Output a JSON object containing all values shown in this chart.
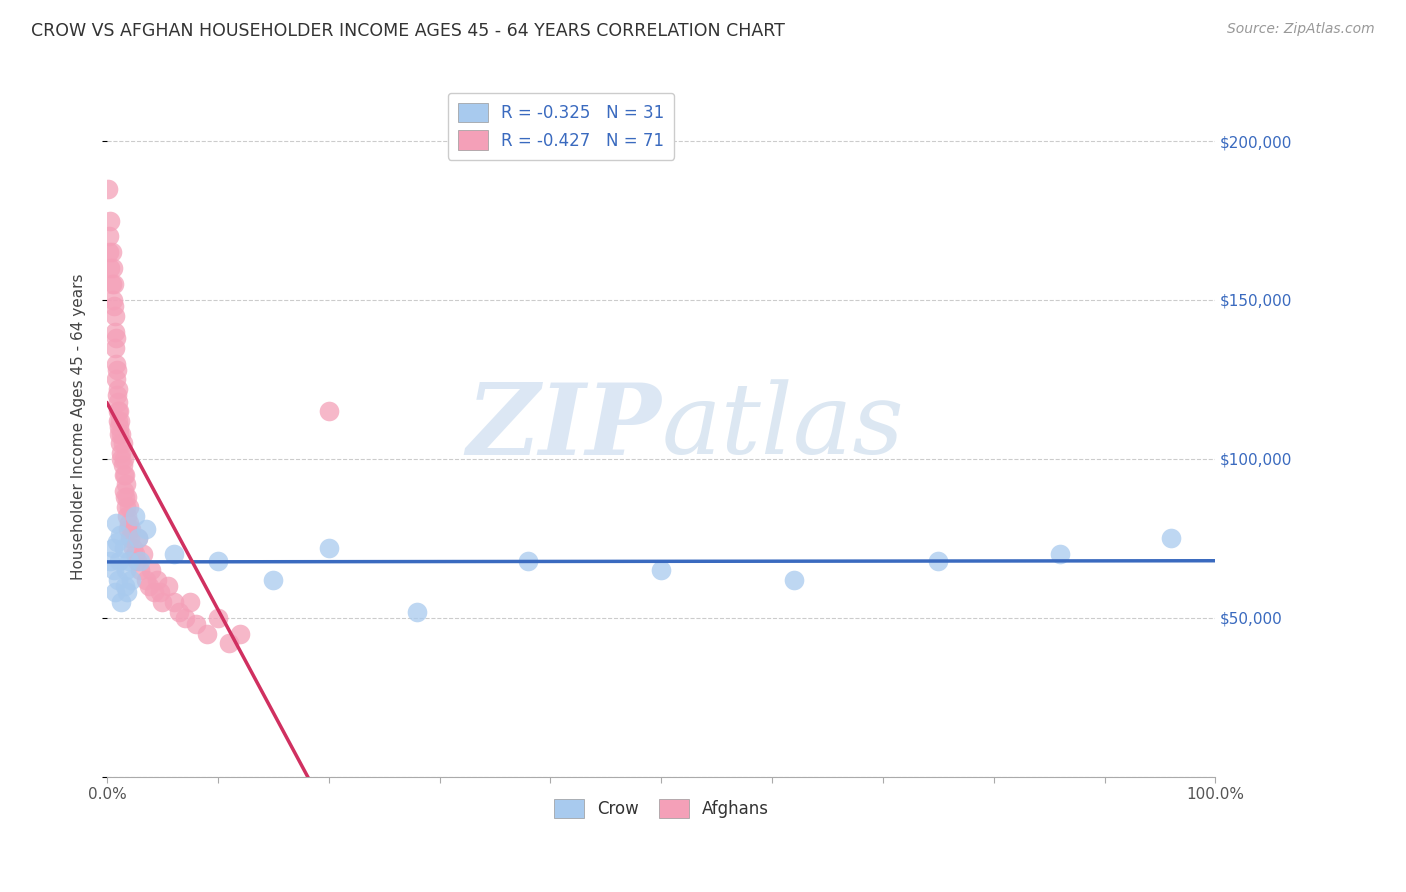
{
  "title": "CROW VS AFGHAN HOUSEHOLDER INCOME AGES 45 - 64 YEARS CORRELATION CHART",
  "source": "Source: ZipAtlas.com",
  "ylabel": "Householder Income Ages 45 - 64 years",
  "crow_R": -0.325,
  "crow_N": 31,
  "afghan_R": -0.427,
  "afghan_N": 71,
  "watermark_zip": "ZIP",
  "watermark_atlas": "atlas",
  "crow_color": "#a8caee",
  "afghan_color": "#f4a0b8",
  "crow_line_color": "#3a6abf",
  "afghan_line_color": "#d03060",
  "crow_x": [
    0.003,
    0.005,
    0.006,
    0.007,
    0.008,
    0.009,
    0.01,
    0.011,
    0.012,
    0.013,
    0.015,
    0.016,
    0.017,
    0.018,
    0.02,
    0.022,
    0.025,
    0.028,
    0.03,
    0.035,
    0.06,
    0.1,
    0.15,
    0.2,
    0.28,
    0.38,
    0.5,
    0.62,
    0.75,
    0.86,
    0.96
  ],
  "crow_y": [
    68000,
    72000,
    65000,
    58000,
    80000,
    74000,
    62000,
    68000,
    76000,
    55000,
    72000,
    60000,
    65000,
    58000,
    68000,
    62000,
    82000,
    75000,
    68000,
    78000,
    70000,
    68000,
    62000,
    72000,
    52000,
    68000,
    65000,
    62000,
    68000,
    70000,
    75000
  ],
  "afghan_x": [
    0.001,
    0.002,
    0.002,
    0.003,
    0.003,
    0.004,
    0.004,
    0.005,
    0.005,
    0.006,
    0.006,
    0.007,
    0.007,
    0.007,
    0.008,
    0.008,
    0.008,
    0.009,
    0.009,
    0.01,
    0.01,
    0.01,
    0.01,
    0.011,
    0.011,
    0.011,
    0.012,
    0.012,
    0.013,
    0.013,
    0.013,
    0.014,
    0.014,
    0.015,
    0.015,
    0.015,
    0.016,
    0.016,
    0.017,
    0.017,
    0.018,
    0.018,
    0.019,
    0.02,
    0.02,
    0.021,
    0.022,
    0.023,
    0.025,
    0.027,
    0.028,
    0.03,
    0.032,
    0.035,
    0.038,
    0.04,
    0.042,
    0.045,
    0.048,
    0.05,
    0.055,
    0.06,
    0.065,
    0.07,
    0.075,
    0.08,
    0.09,
    0.1,
    0.11,
    0.12,
    0.2
  ],
  "afghan_y": [
    185000,
    170000,
    165000,
    175000,
    160000,
    165000,
    155000,
    160000,
    150000,
    155000,
    148000,
    145000,
    140000,
    135000,
    138000,
    130000,
    125000,
    128000,
    120000,
    122000,
    115000,
    118000,
    112000,
    110000,
    115000,
    108000,
    105000,
    112000,
    100000,
    108000,
    102000,
    98000,
    105000,
    95000,
    100000,
    90000,
    88000,
    95000,
    85000,
    92000,
    82000,
    88000,
    78000,
    80000,
    85000,
    75000,
    78000,
    72000,
    70000,
    68000,
    75000,
    65000,
    70000,
    62000,
    60000,
    65000,
    58000,
    62000,
    58000,
    55000,
    60000,
    55000,
    52000,
    50000,
    55000,
    48000,
    45000,
    50000,
    42000,
    45000,
    115000
  ],
  "xlim": [
    0.0,
    1.0
  ],
  "ylim": [
    0,
    220000
  ],
  "yticks": [
    0,
    50000,
    100000,
    150000,
    200000
  ],
  "xticks": [
    0.0,
    0.1,
    0.2,
    0.3,
    0.4,
    0.5,
    0.6,
    0.7,
    0.8,
    0.9,
    1.0
  ],
  "xtick_labels": [
    "0.0%",
    "",
    "",
    "",
    "",
    "",
    "",
    "",
    "",
    "",
    "100.0%"
  ],
  "background_color": "#ffffff",
  "grid_color": "#cccccc",
  "right_ytick_labels": [
    "$50,000",
    "$100,000",
    "$150,000",
    "$200,000"
  ],
  "right_yticks": [
    50000,
    100000,
    150000,
    200000
  ]
}
